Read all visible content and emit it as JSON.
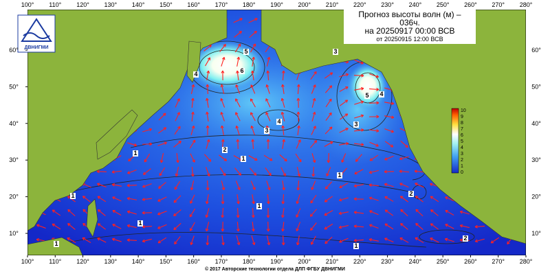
{
  "header": {
    "title_lines": [
      "Прогноз высоты волн (м) –",
      "036ч.",
      "на 20250917 00:00 ВСВ",
      "от 20250915 12:00 ВСВ"
    ],
    "logo": "ДВНИГМИ"
  },
  "map": {
    "lon_ticks": [
      {
        "value": 100,
        "label": "100°"
      },
      {
        "value": 110,
        "label": "110°"
      },
      {
        "value": 120,
        "label": "120°"
      },
      {
        "value": 130,
        "label": "130°"
      },
      {
        "value": 140,
        "label": "140°"
      },
      {
        "value": 150,
        "label": "150°"
      },
      {
        "value": 160,
        "label": "160°"
      },
      {
        "value": 170,
        "label": "170°"
      },
      {
        "value": 180,
        "label": "180°"
      },
      {
        "value": 190,
        "label": "190°"
      },
      {
        "value": 200,
        "label": "200°"
      },
      {
        "value": 210,
        "label": "210°"
      },
      {
        "value": 220,
        "label": "220°"
      },
      {
        "value": 230,
        "label": "230°"
      },
      {
        "value": 240,
        "label": "240°"
      },
      {
        "value": 250,
        "label": "250°"
      },
      {
        "value": 260,
        "label": "260°"
      },
      {
        "value": 270,
        "label": "270°"
      },
      {
        "value": 280,
        "label": "280°"
      }
    ],
    "lat_ticks": [
      {
        "value": 10,
        "label": "10°"
      },
      {
        "value": 20,
        "label": "20°"
      },
      {
        "value": 30,
        "label": "30°"
      },
      {
        "value": 40,
        "label": "40°"
      },
      {
        "value": 50,
        "label": "50°"
      },
      {
        "value": 60,
        "label": "60°"
      }
    ],
    "contour_labels": [
      "6",
      "5",
      "4",
      "3",
      "3",
      "2",
      "1",
      "1",
      "1",
      "1",
      "1",
      "2",
      "1",
      "1",
      "1",
      "4",
      "3",
      "4",
      "5",
      "2"
    ],
    "colorbar_labels": [
      "0",
      "1",
      "2",
      "3",
      "4",
      "5",
      "6",
      "7",
      "8",
      "9",
      "10"
    ]
  },
  "footer": {
    "copyright": "© 2017 Авторские технологии отдела ДЛП ФГБУ ДВНИГМИ"
  }
}
